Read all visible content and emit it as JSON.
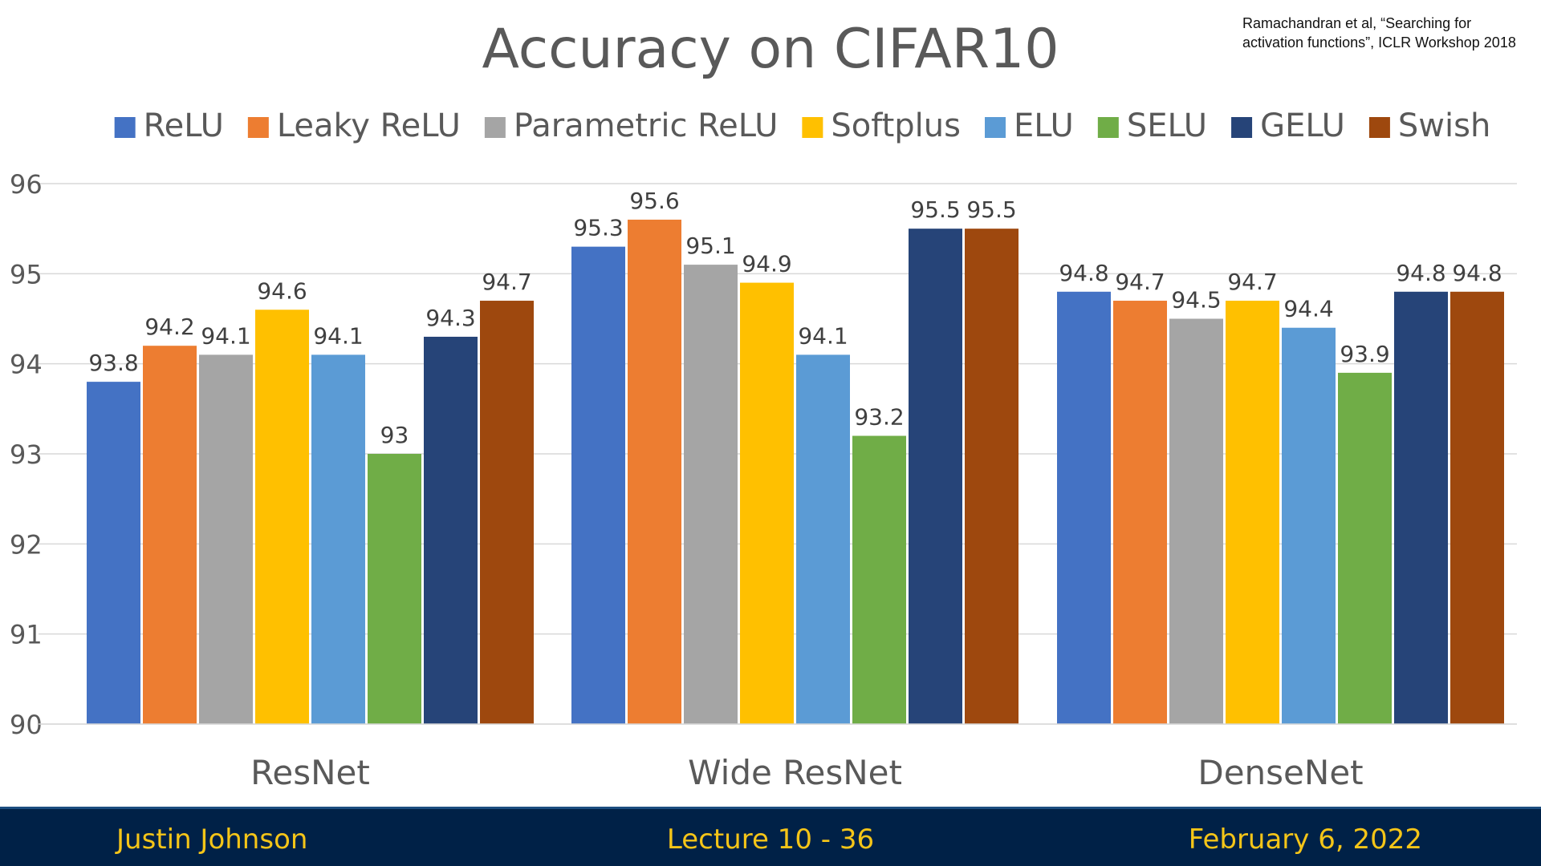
{
  "citation": {
    "line1": "Ramachandran et al, “Searching for",
    "line2": "activation functions”, ICLR Workshop 2018"
  },
  "footer": {
    "author": "Justin Johnson",
    "lecture": "Lecture 10 - 36",
    "date": "February 6, 2022"
  },
  "chart_data": {
    "type": "bar",
    "title": "Accuracy on CIFAR10",
    "xlabel": "",
    "ylabel": "",
    "ylim": [
      90,
      96
    ],
    "yticks": [
      90,
      91,
      92,
      93,
      94,
      95,
      96
    ],
    "grid": true,
    "legend_position": "top",
    "categories": [
      "ResNet",
      "Wide ResNet",
      "DenseNet"
    ],
    "series": [
      {
        "name": "ReLU",
        "color": "#4472C4",
        "values": [
          93.8,
          95.3,
          94.8
        ]
      },
      {
        "name": "Leaky ReLU",
        "color": "#ED7D31",
        "values": [
          94.2,
          95.6,
          94.7
        ]
      },
      {
        "name": "Parametric ReLU",
        "color": "#A5A5A5",
        "values": [
          94.1,
          95.1,
          94.5
        ]
      },
      {
        "name": "Softplus",
        "color": "#FFC000",
        "values": [
          94.6,
          94.9,
          94.7
        ]
      },
      {
        "name": "ELU",
        "color": "#5B9BD5",
        "values": [
          94.1,
          94.1,
          94.4
        ]
      },
      {
        "name": "SELU",
        "color": "#70AD47",
        "values": [
          93,
          93.2,
          93.9
        ]
      },
      {
        "name": "GELU",
        "color": "#264478",
        "values": [
          94.3,
          95.5,
          94.8
        ]
      },
      {
        "name": "Swish",
        "color": "#9E480E",
        "values": [
          94.7,
          95.5,
          94.8
        ]
      }
    ]
  }
}
